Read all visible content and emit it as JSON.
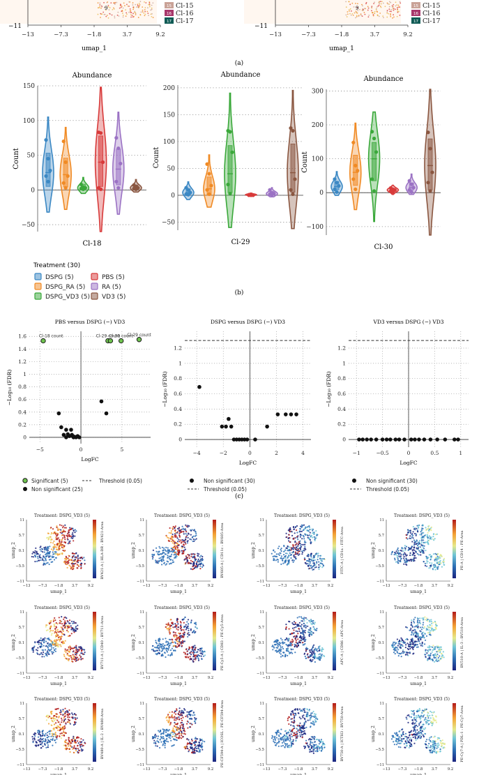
{
  "colors": {
    "DSPG": "#3b88c4",
    "DSPG_RA": "#f08a24",
    "DSPG_VD3": "#3aa83a",
    "PBS": "#d83a3a",
    "RA": "#9b72c4",
    "VD3": "#8a5640",
    "significant": "#6fc34f",
    "nonsig": "#111111"
  },
  "panel_a": {
    "caption": "(a)",
    "xlabel": "umap_1",
    "ytick_bottom": "−11",
    "xticks": [
      "−13",
      "−7.3",
      "−1.8",
      "3.7",
      "9.2"
    ],
    "point_label": "9",
    "legend": [
      {
        "num": "15",
        "label": "Cl-15",
        "color": "#c9a297"
      },
      {
        "num": "16",
        "label": "Cl-16",
        "color": "#a8376b"
      },
      {
        "num": "17",
        "label": "Cl-17",
        "color": "#0f5b55"
      }
    ]
  },
  "panel_b": {
    "caption": "(b)",
    "ylabel": "Count",
    "legend_title": "Treatment (30)",
    "legend": [
      {
        "key": "DSPG",
        "label": "DSPG (5)"
      },
      {
        "key": "PBS",
        "label": "PBS (5)"
      },
      {
        "key": "DSPG_RA",
        "label": "DSPG_RA (5)"
      },
      {
        "key": "RA",
        "label": "RA (5)"
      },
      {
        "key": "DSPG_VD3",
        "label": "DSPG_VD3 (5)"
      },
      {
        "key": "VD3",
        "label": "VD3 (5)"
      }
    ]
  },
  "panel_c": {
    "caption": "(c)",
    "xlabel": "LogFC",
    "ylabel": "−Log₁₀ (FDR)"
  },
  "panel_d": {
    "title": "Treatment: DSPG_VD3 (5)",
    "xlabel": "umap_1",
    "ylabel": "umap_2",
    "xticks": [
      "−13",
      "−7.3",
      "−1.8",
      "3.7",
      "9.2"
    ],
    "yticks": [
      "11",
      "5.7",
      "0.1",
      "−5.5",
      "−11"
    ],
    "markers": [
      "BV421-A | HLA-DR : BV421-Area",
      "BV605-A | CD11c : BV605-Area",
      "FITC-A | CD1a : FITC-Area",
      "PE-A | CD14 : PE-Area",
      "BV711-A | CD40 : BV711-Area",
      "PE-Cy5-A | CD83 : PE-Cy5-Area",
      "APC-A | CD86 : APC-Area",
      "BV510-A | IL-3 : BV510-Area",
      "BV480-A | IL-2 : BV480-Area",
      "PE-CF594-A | ICOSL : PE-CF594-Area",
      "BV750-A | ICTH3 : BV750-Area",
      "PE-Cy7-A | PDL-1 : PE-Cy7-Area"
    ]
  },
  "chart_data": [
    {
      "type": "violin",
      "title": "Abundance",
      "xlabel": "Cl-18",
      "ylabel": "Count",
      "ylim": [
        -60,
        150
      ],
      "yticks": [
        -50,
        0,
        50,
        100,
        150
      ],
      "series": [
        {
          "name": "DSPG",
          "values": [
            72,
            45,
            28,
            20,
            12
          ],
          "min": -32,
          "max": 105,
          "median": 25
        },
        {
          "name": "DSPG_RA",
          "values": [
            70,
            40,
            20,
            10,
            3
          ],
          "min": -28,
          "max": 90,
          "median": 22
        },
        {
          "name": "DSPG_VD3",
          "values": [
            8,
            4,
            3,
            2,
            1
          ],
          "min": -5,
          "max": 18,
          "median": 3
        },
        {
          "name": "PBS",
          "values": [
            83,
            82,
            40,
            3,
            1
          ],
          "min": -60,
          "max": 148,
          "median": 40
        },
        {
          "name": "RA",
          "values": [
            75,
            60,
            38,
            12,
            3
          ],
          "min": -35,
          "max": 112,
          "median": 30
        },
        {
          "name": "VD3",
          "values": [
            7,
            5,
            3,
            2,
            1
          ],
          "min": -3,
          "max": 15,
          "median": 3
        }
      ]
    },
    {
      "type": "violin",
      "title": "Abundance",
      "xlabel": "Cl-29",
      "ylabel": "Count",
      "ylim": [
        -65,
        205
      ],
      "yticks": [
        -50,
        0,
        50,
        100,
        150,
        200
      ],
      "series": [
        {
          "name": "DSPG",
          "values": [
            14,
            10,
            5,
            2,
            1
          ],
          "min": -8,
          "max": 25,
          "median": 5
        },
        {
          "name": "DSPG_RA",
          "values": [
            58,
            40,
            18,
            10,
            2
          ],
          "min": -22,
          "max": 75,
          "median": 12
        },
        {
          "name": "DSPG_VD3",
          "values": [
            120,
            118,
            80,
            20,
            3
          ],
          "min": -60,
          "max": 190,
          "median": 40
        },
        {
          "name": "PBS",
          "values": [
            1,
            1,
            0,
            0,
            0
          ],
          "min": -2,
          "max": 4,
          "median": 1
        },
        {
          "name": "RA",
          "values": [
            10,
            5,
            3,
            2,
            1
          ],
          "min": -3,
          "max": 14,
          "median": 3
        },
        {
          "name": "VD3",
          "values": [
            125,
            120,
            30,
            10,
            2
          ],
          "min": -62,
          "max": 195,
          "median": 42
        }
      ]
    },
    {
      "type": "violin",
      "title": "Abundance",
      "xlabel": "Cl-30",
      "ylabel": "Count",
      "ylim": [
        -125,
        305
      ],
      "yticks": [
        -100,
        0,
        100,
        200,
        300
      ],
      "series": [
        {
          "name": "DSPG",
          "values": [
            40,
            30,
            20,
            10,
            2
          ],
          "min": -8,
          "max": 62,
          "median": 18
        },
        {
          "name": "DSPG_RA",
          "values": [
            148,
            80,
            65,
            40,
            10
          ],
          "min": -50,
          "max": 205,
          "median": 60
        },
        {
          "name": "DSPG_VD3",
          "values": [
            180,
            160,
            120,
            40,
            5
          ],
          "min": -85,
          "max": 238,
          "median": 100
        },
        {
          "name": "PBS",
          "values": [
            14,
            10,
            8,
            5,
            2
          ],
          "min": -5,
          "max": 22,
          "median": 8
        },
        {
          "name": "RA",
          "values": [
            35,
            25,
            15,
            8,
            2
          ],
          "min": -5,
          "max": 55,
          "median": 15
        },
        {
          "name": "VD3",
          "values": [
            178,
            130,
            60,
            30,
            5
          ],
          "min": -125,
          "max": 305,
          "median": 80
        }
      ]
    },
    {
      "type": "scatter",
      "title": "PBS versus DSPG (−) VD3",
      "xlabel": "LogFC",
      "ylabel": "−Log₁₀ (FDR)",
      "xlim": [
        -6.3,
        8.5
      ],
      "ylim": [
        -0.1,
        1.68
      ],
      "xticks": [
        -5,
        0,
        5
      ],
      "yticks": [
        0,
        0.2,
        0.4,
        0.6,
        0.8,
        1,
        1.2,
        1.4,
        1.6
      ],
      "threshold": null,
      "significant": [
        [
          -4.6,
          1.53
        ],
        [
          3.3,
          1.53
        ],
        [
          3.6,
          1.53
        ],
        [
          4.9,
          1.53
        ],
        [
          7.1,
          1.55
        ]
      ],
      "labels": [
        {
          "text": "Cl-18 count",
          "x": -4.6,
          "y": 1.53
        },
        {
          "text": "Cl-29 count",
          "x": 3.3,
          "y": 1.53
        },
        {
          "text": "Cl-30 count",
          "x": 4.9,
          "y": 1.53
        },
        {
          "text": "Cl-29 count",
          "x": 7.1,
          "y": 1.55
        }
      ],
      "nonsignificant": [
        [
          -2.7,
          0.38
        ],
        [
          -2.4,
          0.16
        ],
        [
          -2.1,
          0.04
        ],
        [
          -1.8,
          0.12
        ],
        [
          -1.6,
          0.05
        ],
        [
          -1.4,
          0.02
        ],
        [
          -1.2,
          0.12
        ],
        [
          -1.0,
          0.02
        ],
        [
          -0.8,
          0.01
        ],
        [
          -0.6,
          0.0
        ],
        [
          -0.4,
          0.02
        ],
        [
          -0.2,
          0.0
        ],
        [
          2.5,
          0.57
        ],
        [
          3.1,
          0.38
        ],
        [
          -1.8,
          0.0
        ],
        [
          -1.1,
          0.04
        ],
        [
          -0.9,
          0.0
        ],
        [
          -0.5,
          0.01
        ]
      ],
      "legend": [
        "Significant (5)",
        "Threshold (0.05)",
        "Non significant (25)"
      ]
    },
    {
      "type": "scatter",
      "title": "DSPG versus DSPG (−) VD3",
      "xlabel": "LogFC",
      "ylabel": "−Log₁₀ (FDR)",
      "xlim": [
        -4.9,
        4.6
      ],
      "ylim": [
        -0.1,
        1.42
      ],
      "xticks": [
        -4,
        -2,
        0,
        2,
        4
      ],
      "yticks": [
        0,
        0.2,
        0.4,
        0.6,
        0.8,
        1,
        1.2
      ],
      "threshold": 1.3,
      "significant": [],
      "nonsignificant": [
        [
          -3.8,
          0.69
        ],
        [
          -2.1,
          0.17
        ],
        [
          -1.8,
          0.17
        ],
        [
          -1.6,
          0.27
        ],
        [
          -1.4,
          0.17
        ],
        [
          -1.2,
          0.0
        ],
        [
          -1.0,
          0.0
        ],
        [
          -0.8,
          0.0
        ],
        [
          -0.6,
          0.0
        ],
        [
          -0.4,
          0.0
        ],
        [
          -0.2,
          0.0
        ],
        [
          0.4,
          0.0
        ],
        [
          1.3,
          0.17
        ],
        [
          2.1,
          0.33
        ],
        [
          2.7,
          0.33
        ],
        [
          3.1,
          0.33
        ],
        [
          3.5,
          0.33
        ]
      ],
      "legend": [
        "Non significant (30)",
        "Threshold (0.05)"
      ]
    },
    {
      "type": "scatter",
      "title": "VD3 versus DSPG (−) VD3",
      "xlabel": "LogFC",
      "ylabel": "−Log₁₀ (FDR)",
      "xlim": [
        -1.15,
        1.15
      ],
      "ylim": [
        -0.1,
        1.42
      ],
      "xticks": [
        -1,
        -0.5,
        0,
        0.5,
        1
      ],
      "yticks": [
        0,
        0.2,
        0.4,
        0.6,
        0.8,
        1,
        1.2
      ],
      "threshold": 1.3,
      "significant": [],
      "nonsignificant": [
        [
          -0.95,
          0.0
        ],
        [
          -0.88,
          0.0
        ],
        [
          -0.8,
          0.0
        ],
        [
          -0.72,
          0.0
        ],
        [
          -0.62,
          0.0
        ],
        [
          -0.5,
          0.0
        ],
        [
          -0.42,
          0.0
        ],
        [
          -0.35,
          0.0
        ],
        [
          -0.25,
          0.0
        ],
        [
          -0.18,
          0.0
        ],
        [
          -0.08,
          0.0
        ],
        [
          0.05,
          0.0
        ],
        [
          0.12,
          0.0
        ],
        [
          0.2,
          0.0
        ],
        [
          0.3,
          0.0
        ],
        [
          0.42,
          0.0
        ],
        [
          0.55,
          0.0
        ],
        [
          0.7,
          0.0
        ],
        [
          0.88,
          0.0
        ],
        [
          0.95,
          0.0
        ]
      ],
      "legend": [
        "Non significant (30)",
        "Threshold (0.05)"
      ]
    }
  ]
}
